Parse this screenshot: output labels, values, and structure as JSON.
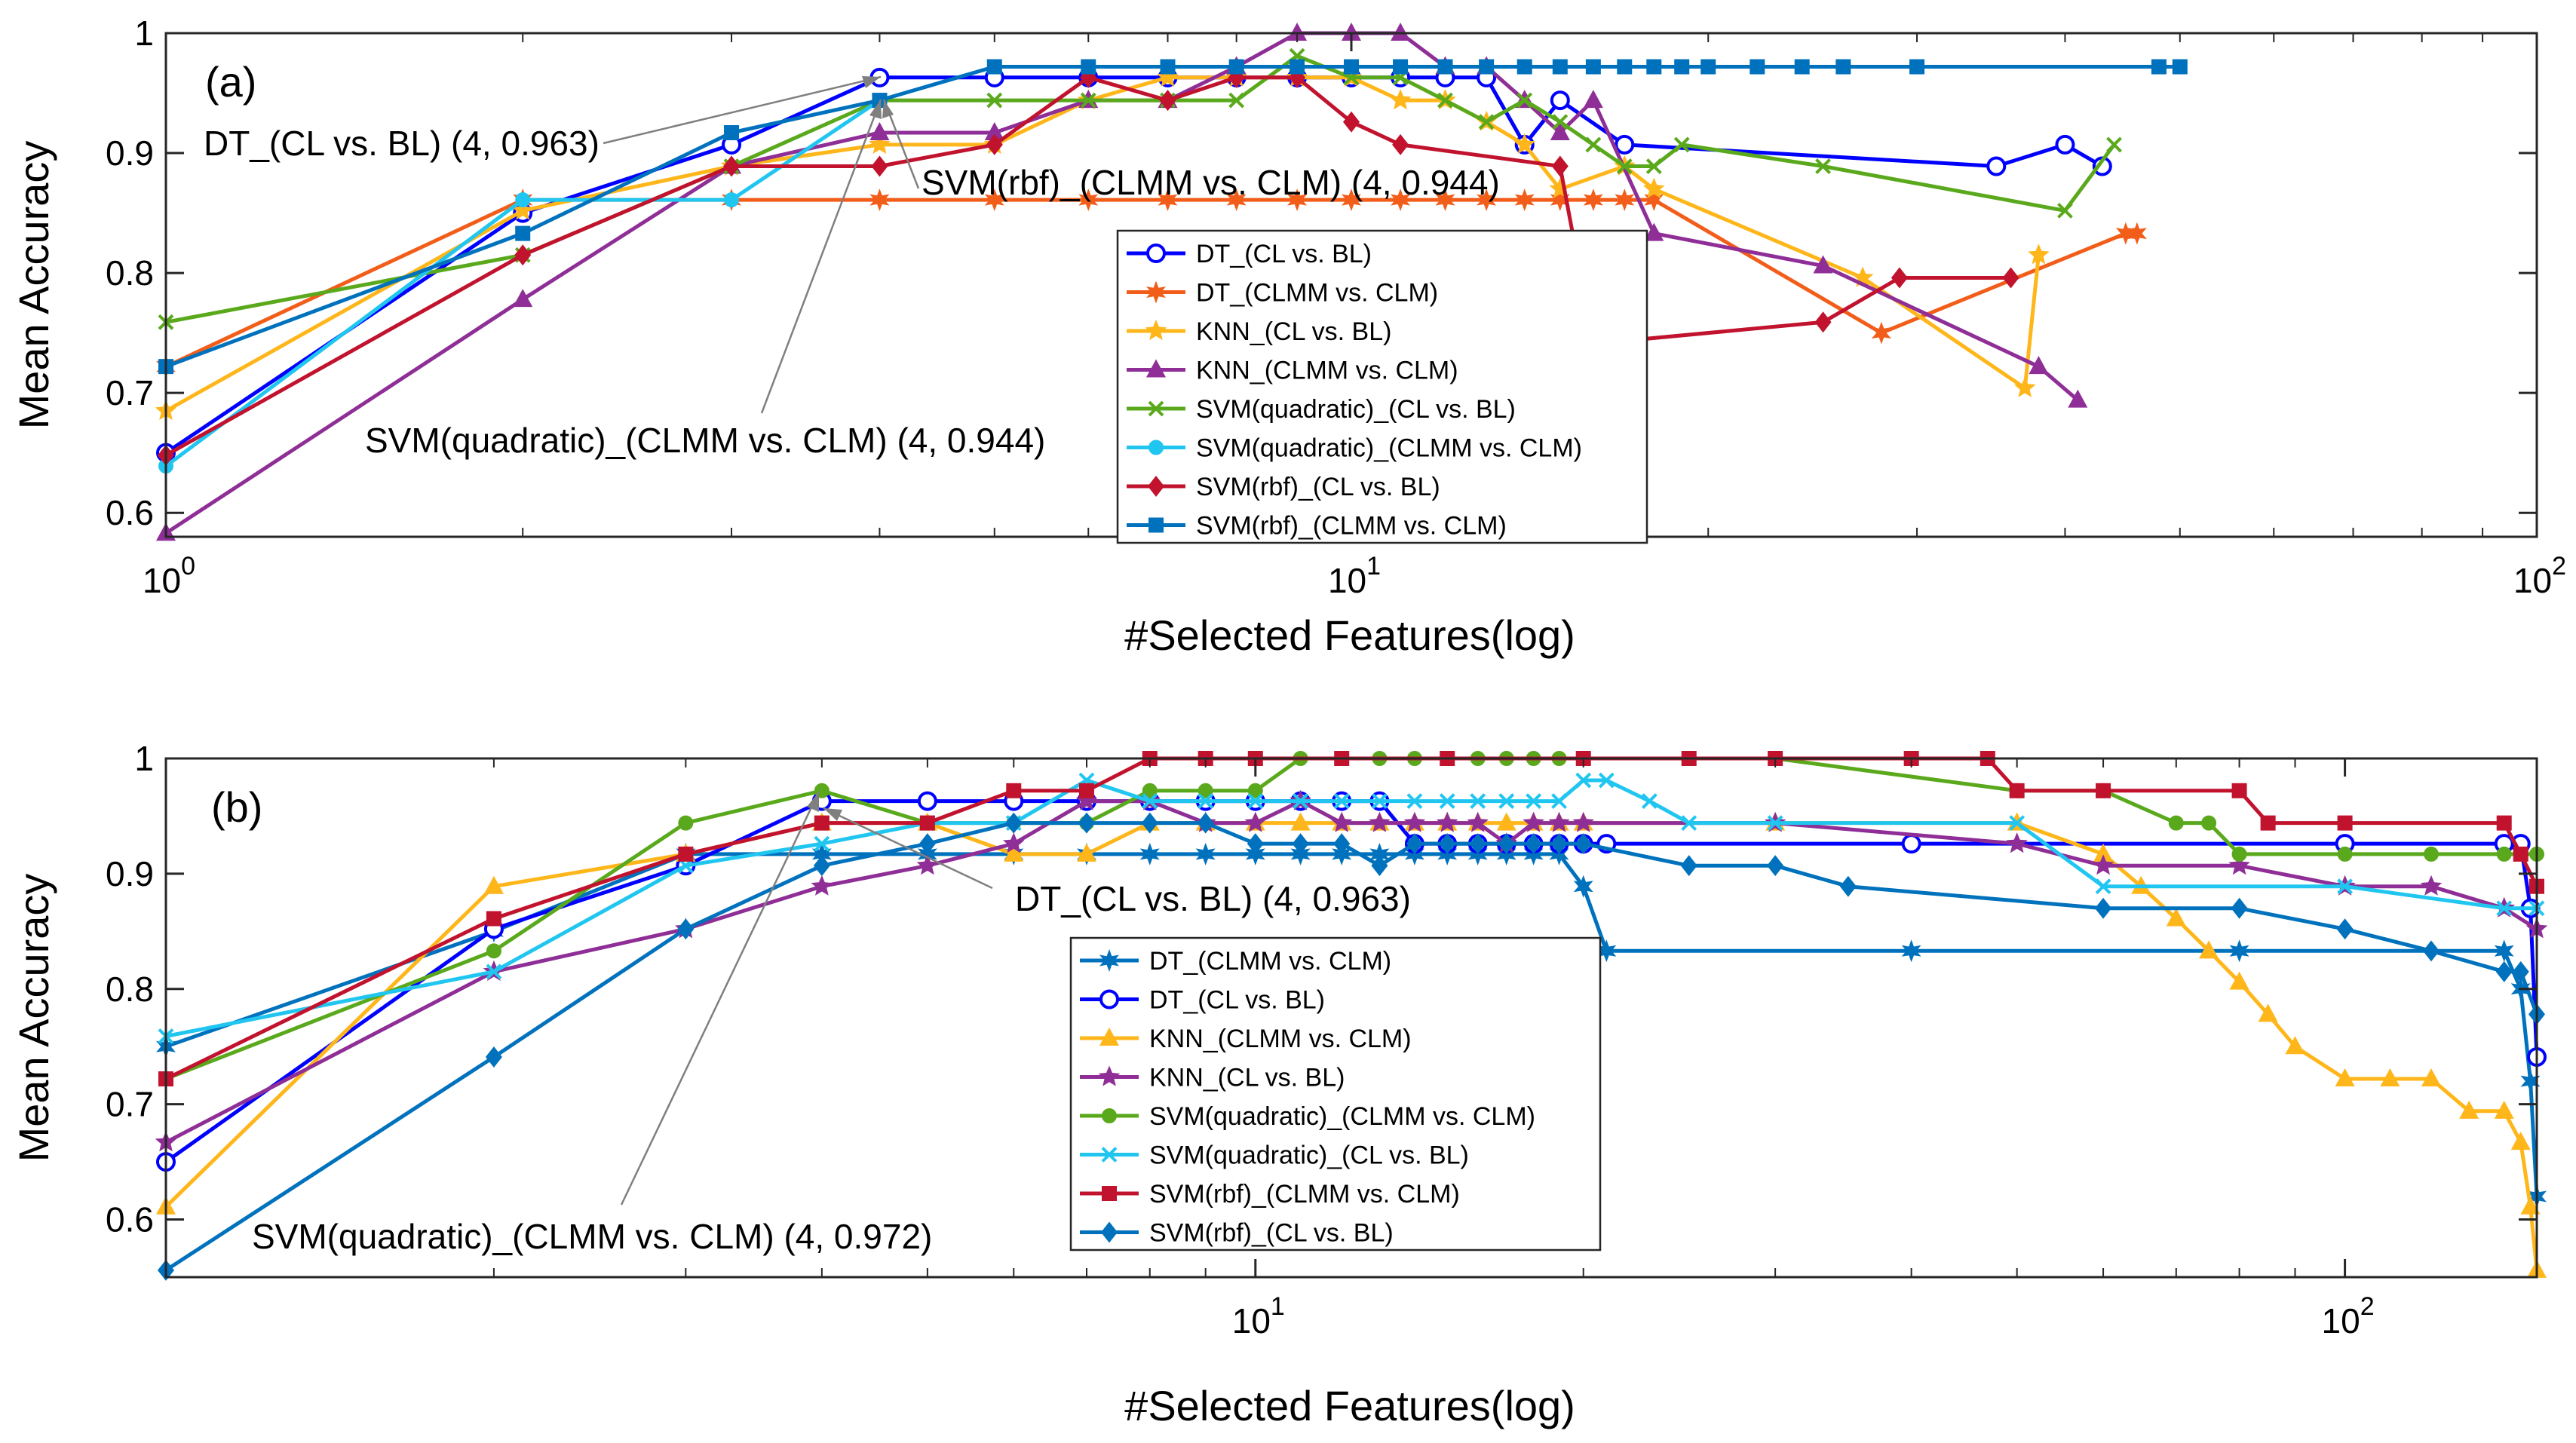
{
  "chart_data": [
    {
      "id": "a",
      "type": "line",
      "panel_label": "(a)",
      "xlabel": "#Selected Features(log)",
      "ylabel": "Mean Accuracy",
      "xscale": "log",
      "xlim": [
        1,
        100
      ],
      "ylim": [
        0.58,
        1.0
      ],
      "xticks": [
        {
          "value": 1,
          "base": "10",
          "exp": "0"
        },
        {
          "value": 10,
          "base": "10",
          "exp": "1"
        },
        {
          "value": 100,
          "base": "10",
          "exp": "2"
        }
      ],
      "yticks": [
        0.6,
        0.7,
        0.8,
        0.9,
        1
      ],
      "ytick_labels": [
        "0.6",
        "0.7",
        "0.8",
        "0.9",
        "1"
      ],
      "legend_position": "center",
      "series": [
        {
          "name": "DT_(CL vs. BL)",
          "color": "#0000ff",
          "marker": "circle",
          "x": [
            1,
            2,
            3,
            4,
            5,
            6,
            7,
            8,
            9,
            10,
            11,
            12,
            13,
            14,
            15,
            17,
            35,
            40,
            43
          ],
          "y": [
            0.65,
            0.85,
            0.907,
            0.963,
            0.963,
            0.963,
            0.963,
            0.963,
            0.963,
            0.963,
            0.963,
            0.963,
            0.963,
            0.907,
            0.944,
            0.907,
            0.889,
            0.907,
            0.889
          ]
        },
        {
          "name": "DT_(CLMM vs. CLM)",
          "color": "#f25e1a",
          "marker": "star6",
          "x": [
            1,
            2,
            3,
            4,
            5,
            6,
            7,
            8,
            9,
            10,
            11,
            12,
            13,
            14,
            15,
            16,
            17,
            18,
            28,
            45,
            46
          ],
          "y": [
            0.722,
            0.861,
            0.861,
            0.861,
            0.861,
            0.861,
            0.861,
            0.861,
            0.861,
            0.861,
            0.861,
            0.861,
            0.861,
            0.861,
            0.861,
            0.861,
            0.861,
            0.861,
            0.75,
            0.833,
            0.833
          ]
        },
        {
          "name": "KNN_(CL vs. BL)",
          "color": "#ffb61a",
          "marker": "star5",
          "x": [
            1,
            2,
            3,
            4,
            5,
            6,
            7,
            8,
            9,
            10,
            11,
            12,
            13,
            14,
            15,
            17,
            18,
            27,
            37,
            38
          ],
          "y": [
            0.685,
            0.852,
            0.889,
            0.907,
            0.907,
            0.944,
            0.963,
            0.963,
            0.963,
            0.963,
            0.944,
            0.944,
            0.926,
            0.907,
            0.87,
            0.889,
            0.87,
            0.796,
            0.704,
            0.815
          ]
        },
        {
          "name": "KNN_(CLMM vs. CLM)",
          "color": "#8e2e96",
          "marker": "triangle",
          "x": [
            1,
            2,
            3,
            4,
            5,
            6,
            7,
            8,
            9,
            10,
            11,
            12,
            13,
            14,
            15,
            16,
            18,
            25,
            38,
            41
          ],
          "y": [
            0.583,
            0.778,
            0.889,
            0.917,
            0.917,
            0.944,
            0.944,
            0.972,
            1.0,
            1.0,
            1.0,
            0.972,
            0.972,
            0.944,
            0.917,
            0.944,
            0.833,
            0.806,
            0.722,
            0.694
          ]
        },
        {
          "name": "SVM(quadratic)_(CL vs. BL)",
          "color": "#5aa91c",
          "marker": "x",
          "x": [
            1,
            2,
            3,
            4,
            5,
            6,
            7,
            8,
            9,
            10,
            11,
            12,
            13,
            14,
            15,
            16,
            17,
            18,
            19,
            25,
            40,
            44
          ],
          "y": [
            0.759,
            0.815,
            0.889,
            0.944,
            0.944,
            0.944,
            0.944,
            0.944,
            0.981,
            0.963,
            0.963,
            0.944,
            0.926,
            0.944,
            0.926,
            0.907,
            0.889,
            0.889,
            0.907,
            0.889,
            0.852,
            0.907
          ]
        },
        {
          "name": "SVM(quadratic)_(CLMM vs. CLM)",
          "color": "#21c6f0",
          "marker": "dot",
          "x": [
            1,
            2,
            3,
            4
          ],
          "y": [
            0.639,
            0.861,
            0.861,
            0.944
          ]
        },
        {
          "name": "SVM(rbf)_(CL vs. BL)",
          "color": "#c1122e",
          "marker": "diamond",
          "x": [
            1,
            2,
            3,
            4,
            5,
            6,
            7,
            8,
            9,
            10,
            11,
            15,
            16,
            25,
            29,
            36
          ],
          "y": [
            0.648,
            0.815,
            0.889,
            0.889,
            0.907,
            0.963,
            0.944,
            0.963,
            0.963,
            0.926,
            0.907,
            0.889,
            0.741,
            0.759,
            0.796,
            0.796
          ]
        },
        {
          "name": "SVM(rbf)_(CLMM vs. CLM)",
          "color": "#0072bd",
          "marker": "square",
          "x": [
            1,
            2,
            3,
            4,
            5,
            6,
            7,
            8,
            9,
            10,
            11,
            12,
            13,
            14,
            15,
            16,
            17,
            18,
            19,
            20,
            22,
            24,
            26,
            30,
            48,
            50
          ],
          "y": [
            0.722,
            0.833,
            0.917,
            0.944,
            0.972,
            0.972,
            0.972,
            0.972,
            0.972,
            0.972,
            0.972,
            0.972,
            0.972,
            0.972,
            0.972,
            0.972,
            0.972,
            0.972,
            0.972,
            0.972,
            0.972,
            0.972,
            0.972,
            0.972,
            0.972,
            0.972
          ]
        }
      ],
      "annotations": [
        {
          "text": "DT_(CL vs. BL) (4, 0.963)",
          "point": [
            4,
            0.963
          ]
        },
        {
          "text": "SVM(rbf)_(CLMM vs. CLM) (4, 0.944)",
          "point": [
            4,
            0.944
          ]
        },
        {
          "text": "SVM(quadratic)_(CLMM vs. CLM) (4, 0.944)",
          "point": [
            4,
            0.944
          ]
        }
      ]
    },
    {
      "id": "b",
      "type": "line",
      "panel_label": "(b)",
      "xlabel": "#Selected Features(log)",
      "ylabel": "Mean Accuracy",
      "xscale": "log",
      "xlim": [
        1,
        150
      ],
      "ylim": [
        0.55,
        1.0
      ],
      "xticks": [
        {
          "value": 10,
          "base": "10",
          "exp": "1"
        },
        {
          "value": 100,
          "base": "10",
          "exp": "2"
        }
      ],
      "yticks": [
        0.6,
        0.7,
        0.8,
        0.9,
        1
      ],
      "ytick_labels": [
        "0.6",
        "0.7",
        "0.8",
        "0.9",
        "1"
      ],
      "legend_position": "center",
      "series": [
        {
          "name": "DT_(CLMM vs. CLM)",
          "color": "#0072bd",
          "marker": "star6",
          "x": [
            1,
            2,
            3,
            4,
            5,
            6,
            7,
            8,
            9,
            10,
            11,
            12,
            13,
            14,
            15,
            16,
            17,
            18,
            19,
            20,
            21,
            40,
            80,
            140,
            145,
            148,
            150
          ],
          "y": [
            0.75,
            0.85,
            0.917,
            0.917,
            0.917,
            0.917,
            0.917,
            0.917,
            0.917,
            0.917,
            0.917,
            0.917,
            0.917,
            0.917,
            0.917,
            0.917,
            0.917,
            0.917,
            0.917,
            0.889,
            0.833,
            0.833,
            0.833,
            0.833,
            0.8,
            0.72,
            0.62
          ]
        },
        {
          "name": "DT_(CL vs. BL)",
          "color": "#0000ff",
          "marker": "circle",
          "x": [
            1,
            2,
            3,
            4,
            5,
            6,
            7,
            8,
            9,
            10,
            11,
            12,
            13,
            14,
            15,
            16,
            17,
            18,
            19,
            20,
            21,
            40,
            100,
            140,
            145,
            148,
            150
          ],
          "y": [
            0.65,
            0.852,
            0.907,
            0.963,
            0.963,
            0.963,
            0.963,
            0.963,
            0.963,
            0.963,
            0.963,
            0.963,
            0.963,
            0.926,
            0.926,
            0.926,
            0.926,
            0.926,
            0.926,
            0.926,
            0.926,
            0.926,
            0.926,
            0.926,
            0.926,
            0.87,
            0.741
          ]
        },
        {
          "name": "KNN_(CLMM vs. CLM)",
          "color": "#ffb61a",
          "marker": "triangle",
          "x": [
            1,
            2,
            3,
            4,
            5,
            6,
            7,
            8,
            9,
            10,
            11,
            12,
            13,
            14,
            15,
            16,
            17,
            18,
            19,
            20,
            30,
            50,
            60,
            65,
            70,
            75,
            80,
            85,
            90,
            100,
            110,
            120,
            130,
            140,
            145,
            148,
            150
          ],
          "y": [
            0.611,
            0.889,
            0.917,
            0.944,
            0.944,
            0.917,
            0.917,
            0.944,
            0.944,
            0.944,
            0.944,
            0.944,
            0.944,
            0.944,
            0.944,
            0.944,
            0.944,
            0.944,
            0.944,
            0.944,
            0.944,
            0.944,
            0.917,
            0.889,
            0.861,
            0.833,
            0.806,
            0.778,
            0.75,
            0.722,
            0.722,
            0.722,
            0.694,
            0.694,
            0.667,
            0.611,
            0.556
          ]
        },
        {
          "name": "KNN_(CL vs. BL)",
          "color": "#8e2e96",
          "marker": "star5",
          "x": [
            1,
            2,
            3,
            4,
            5,
            6,
            7,
            8,
            9,
            10,
            11,
            12,
            13,
            14,
            15,
            16,
            17,
            18,
            19,
            20,
            30,
            50,
            60,
            80,
            100,
            120,
            140,
            150
          ],
          "y": [
            0.667,
            0.815,
            0.852,
            0.889,
            0.907,
            0.926,
            0.963,
            0.963,
            0.944,
            0.944,
            0.963,
            0.944,
            0.944,
            0.944,
            0.944,
            0.944,
            0.926,
            0.944,
            0.944,
            0.944,
            0.944,
            0.926,
            0.907,
            0.907,
            0.889,
            0.889,
            0.87,
            0.852
          ]
        },
        {
          "name": "SVM(quadratic)_(CLMM vs. CLM)",
          "color": "#5aa91c",
          "marker": "dot",
          "x": [
            1,
            2,
            3,
            4,
            5,
            6,
            7,
            8,
            9,
            10,
            11,
            12,
            13,
            14,
            15,
            16,
            17,
            18,
            19,
            20,
            30,
            50,
            60,
            70,
            75,
            80,
            100,
            120,
            140,
            150
          ],
          "y": [
            0.722,
            0.833,
            0.944,
            0.972,
            0.944,
            0.944,
            0.944,
            0.972,
            0.972,
            0.972,
            1.0,
            1.0,
            1.0,
            1.0,
            1.0,
            1.0,
            1.0,
            1.0,
            1.0,
            1.0,
            1.0,
            0.972,
            0.972,
            0.944,
            0.944,
            0.917,
            0.917,
            0.917,
            0.917,
            0.917
          ]
        },
        {
          "name": "SVM(quadratic)_(CL vs. BL)",
          "color": "#21c6f0",
          "marker": "x",
          "x": [
            1,
            2,
            3,
            4,
            5,
            6,
            7,
            8,
            9,
            10,
            11,
            12,
            13,
            14,
            15,
            16,
            17,
            18,
            19,
            20,
            21,
            23,
            25,
            30,
            50,
            60,
            100,
            140,
            150
          ],
          "y": [
            0.759,
            0.815,
            0.907,
            0.926,
            0.944,
            0.944,
            0.981,
            0.963,
            0.963,
            0.963,
            0.963,
            0.963,
            0.963,
            0.963,
            0.963,
            0.963,
            0.963,
            0.963,
            0.963,
            0.981,
            0.981,
            0.963,
            0.944,
            0.944,
            0.944,
            0.889,
            0.889,
            0.87,
            0.87
          ]
        },
        {
          "name": "SVM(rbf)_(CLMM vs. CLM)",
          "color": "#c1122e",
          "marker": "square",
          "x": [
            1,
            2,
            3,
            4,
            5,
            6,
            7,
            8,
            9,
            10,
            12,
            15,
            20,
            25,
            30,
            40,
            47,
            50,
            60,
            80,
            85,
            100,
            140,
            145,
            150
          ],
          "y": [
            0.722,
            0.861,
            0.917,
            0.944,
            0.944,
            0.972,
            0.972,
            1.0,
            1.0,
            1.0,
            1.0,
            1.0,
            1.0,
            1.0,
            1.0,
            1.0,
            1.0,
            0.972,
            0.972,
            0.972,
            0.944,
            0.944,
            0.944,
            0.917,
            0.889
          ]
        },
        {
          "name": "SVM(rbf)_(CL vs. BL)",
          "color": "#0072bd",
          "marker": "diamond",
          "x": [
            1,
            2,
            3,
            4,
            5,
            6,
            7,
            8,
            9,
            10,
            11,
            12,
            13,
            14,
            15,
            16,
            17,
            18,
            19,
            20,
            25,
            30,
            35,
            60,
            80,
            100,
            120,
            140,
            145,
            150
          ],
          "y": [
            0.556,
            0.741,
            0.852,
            0.907,
            0.926,
            0.944,
            0.944,
            0.944,
            0.944,
            0.926,
            0.926,
            0.926,
            0.907,
            0.926,
            0.926,
            0.926,
            0.926,
            0.926,
            0.926,
            0.926,
            0.907,
            0.907,
            0.889,
            0.87,
            0.87,
            0.852,
            0.833,
            0.815,
            0.815,
            0.778
          ]
        }
      ],
      "annotations": [
        {
          "text": "DT_(CL vs. BL) (4, 0.963)",
          "point": [
            4,
            0.963
          ]
        },
        {
          "text": "SVM(quadratic)_(CLMM vs. CLM) (4, 0.972)",
          "point": [
            4,
            0.972
          ]
        }
      ]
    }
  ]
}
